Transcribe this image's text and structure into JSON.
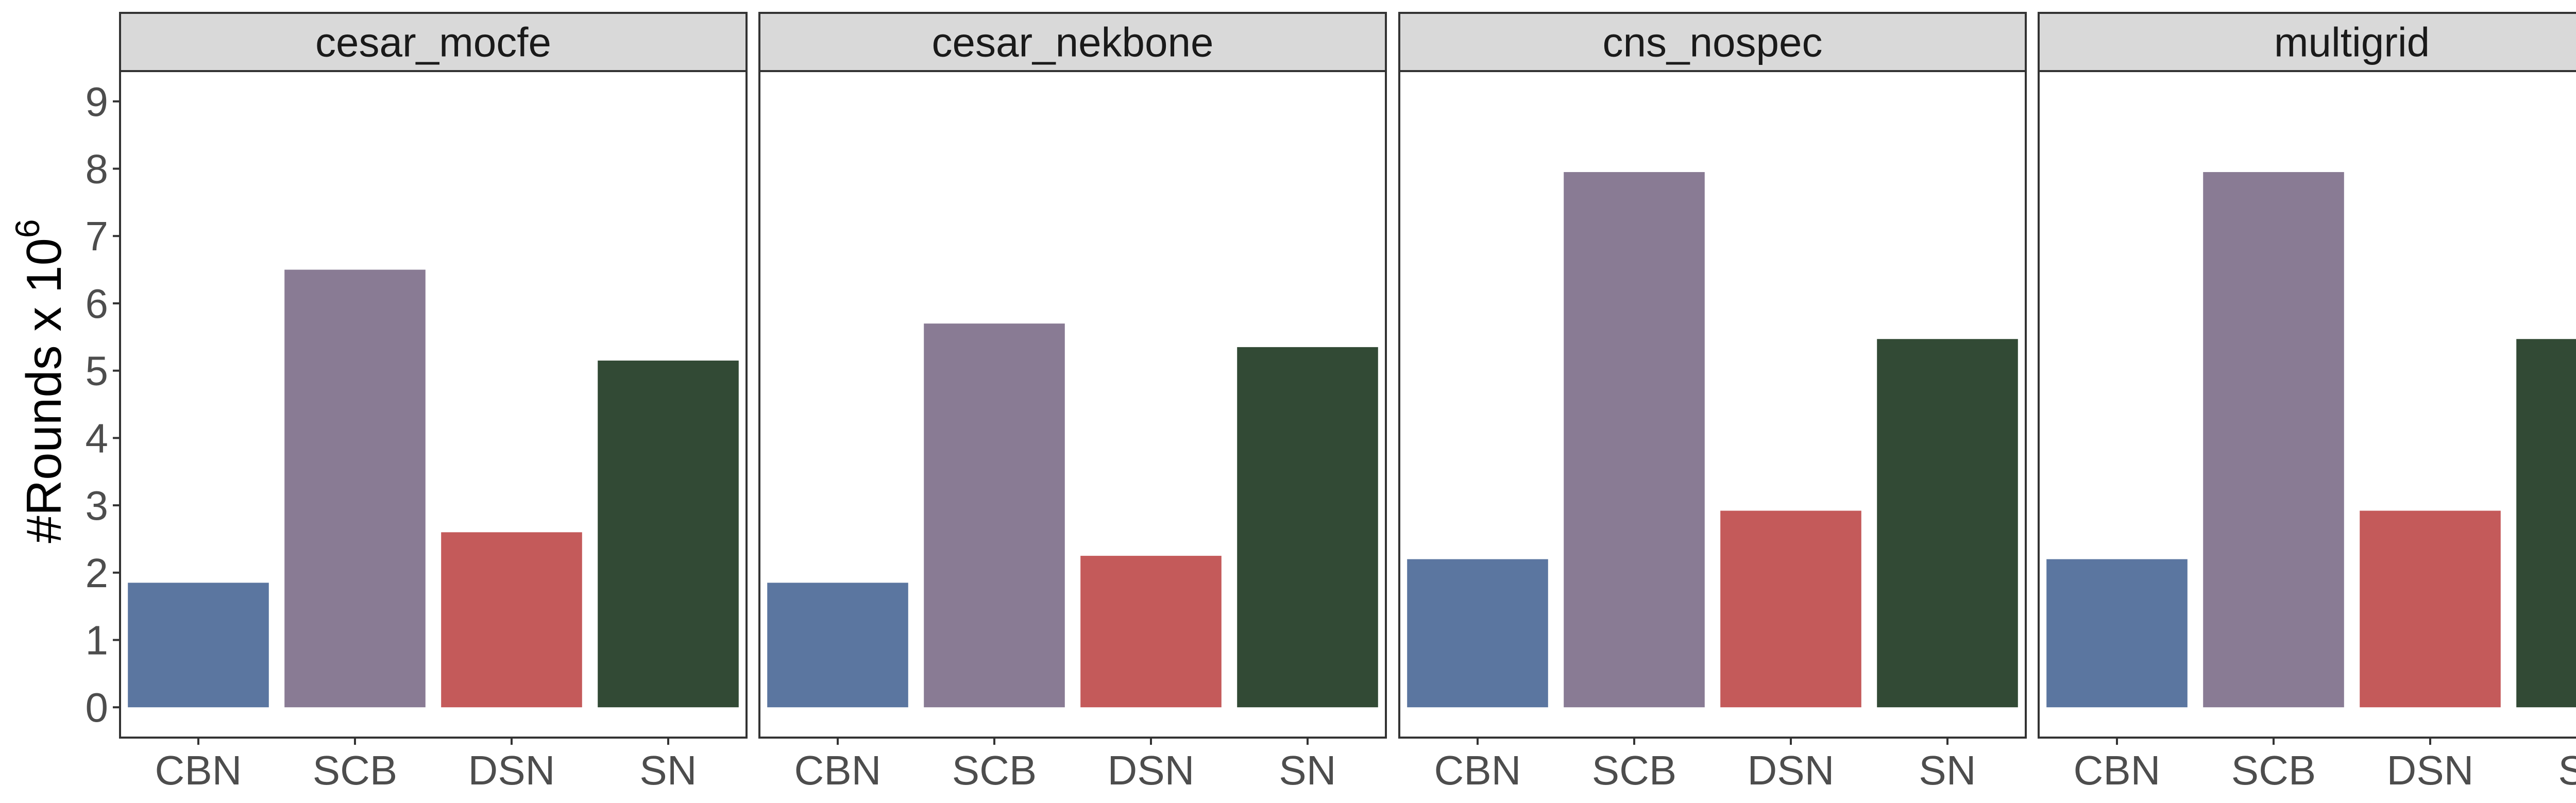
{
  "chart_data": {
    "type": "bar",
    "ylabel_base": "#Rounds x 10",
    "ylabel_exponent": "6",
    "xlabel": "",
    "ylim": [
      -0.45,
      9.45
    ],
    "yticks": [
      "0",
      "1",
      "2",
      "3",
      "4",
      "5",
      "6",
      "7",
      "8",
      "9"
    ],
    "categories": [
      "CBN",
      "SCB",
      "DSN",
      "SN"
    ],
    "colors": {
      "CBN": "#5b76a0",
      "SCB": "#897b94",
      "DSN": "#c45a5a",
      "SN": "#324a35"
    },
    "facets": [
      {
        "name": "cesar_mocfe",
        "values": [
          1.85,
          6.5,
          2.6,
          5.15
        ]
      },
      {
        "name": "cesar_nekbone",
        "values": [
          1.85,
          5.7,
          2.25,
          5.35
        ]
      },
      {
        "name": "cns_nospec",
        "values": [
          2.2,
          7.95,
          2.92,
          5.47
        ]
      },
      {
        "name": "multigrid",
        "values": [
          2.2,
          7.95,
          2.92,
          5.47
        ]
      }
    ]
  }
}
